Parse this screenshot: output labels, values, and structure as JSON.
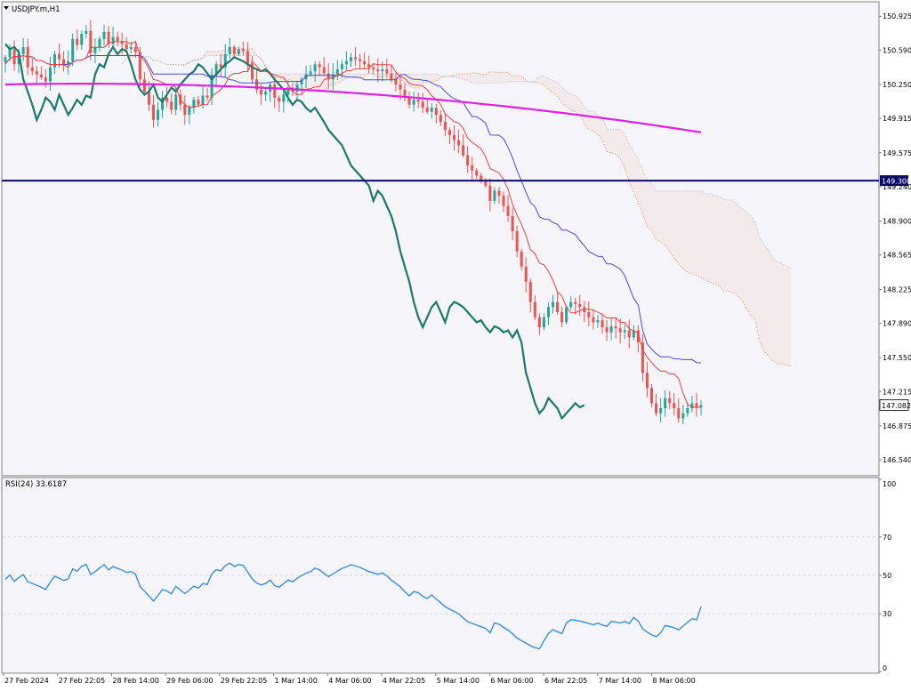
{
  "chart_data": {
    "type": "candlestick",
    "symbol_label": "USDJPY.m,H1",
    "colors": {
      "background": "#f4f4f9",
      "frame": "#7f7f7f",
      "bull": "#26a69a",
      "bear": "#ef5350",
      "tenkan": "#e8423f",
      "kijun": "#4a4ad6",
      "chikou": "#1b7a6b",
      "ma": "#e020e0",
      "level": "#0a0a6e",
      "cloud": "#f08a4a",
      "cloud_b": "#b0b0c8",
      "rsi": "#3b8fe0",
      "grid": "#d8d8e0",
      "price_box_bg": "#ffffff",
      "level_box_bg": "#0a0a6e"
    },
    "price_axis": {
      "ylim": [
        146.4,
        151.05
      ],
      "ticks": [
        "150.925",
        "150.590",
        "150.250",
        "149.915",
        "149.575",
        "149.240",
        "148.900",
        "148.565",
        "148.225",
        "147.890",
        "147.550",
        "147.215",
        "146.875",
        "146.540"
      ]
    },
    "time_axis": {
      "labels": [
        "27 Feb 2024",
        "27 Feb 22:05",
        "28 Feb 14:00",
        "29 Feb 06:00",
        "29 Feb 22:05",
        "1 Mar 14:00",
        "4 Mar 06:00",
        "4 Mar 22:05",
        "5 Mar 14:00",
        "6 Mar 06:00",
        "6 Mar 22:05",
        "7 Mar 14:00",
        "8 Mar 06:00"
      ]
    },
    "horizontal_level": {
      "value": 149.3,
      "label": "149.300"
    },
    "current_price": {
      "value": 147.082,
      "label": "147.082"
    },
    "candles": {
      "count": 156,
      "close": [
        150.52,
        150.6,
        150.45,
        150.55,
        150.62,
        150.42,
        150.38,
        150.35,
        150.32,
        150.28,
        150.42,
        150.55,
        150.5,
        150.45,
        150.48,
        150.7,
        150.64,
        150.75,
        150.78,
        150.56,
        150.62,
        150.7,
        150.77,
        150.65,
        150.72,
        150.68,
        150.65,
        150.6,
        150.62,
        150.57,
        150.3,
        150.18,
        150.05,
        149.9,
        150.0,
        150.12,
        150.08,
        150.0,
        150.15,
        150.05,
        149.95,
        150.02,
        150.1,
        150.05,
        150.14,
        150.12,
        150.35,
        150.45,
        150.42,
        150.55,
        150.62,
        150.55,
        150.6,
        150.58,
        150.45,
        150.3,
        150.2,
        150.15,
        150.18,
        150.25,
        150.12,
        150.08,
        150.15,
        150.22,
        150.18,
        150.25,
        150.3,
        150.35,
        150.38,
        150.45,
        150.42,
        150.36,
        150.3,
        150.35,
        150.4,
        150.45,
        150.48,
        150.52,
        150.5,
        150.48,
        150.45,
        150.42,
        150.4,
        150.38,
        150.4,
        150.36,
        150.3,
        150.25,
        150.2,
        150.12,
        150.05,
        150.1,
        150.08,
        150.02,
        149.98,
        150.02,
        149.95,
        149.88,
        149.8,
        149.75,
        149.7,
        149.65,
        149.55,
        149.45,
        149.4,
        149.35,
        149.3,
        149.25,
        149.1,
        149.2,
        149.15,
        149.05,
        148.95,
        148.8,
        148.6,
        148.45,
        148.3,
        148.1,
        147.95,
        147.85,
        147.95,
        148.05,
        148.1,
        148.0,
        147.9,
        148.05,
        148.1,
        148.08,
        148.05,
        148.0,
        147.95,
        147.9,
        147.92,
        147.85,
        147.8,
        147.86,
        147.84,
        147.8,
        147.82,
        147.75,
        147.82,
        147.7,
        147.4,
        147.25,
        147.1,
        147.0,
        147.05,
        147.15,
        147.1,
        147.05,
        146.95,
        147.0,
        147.05,
        147.1,
        147.06,
        147.08
      ]
    },
    "rsi": {
      "label": "RSI(24) 33.6187",
      "period": 24,
      "last": 33.6187,
      "ylim": [
        0,
        100
      ],
      "levels": [
        70,
        50,
        30
      ],
      "tick_labels": [
        "100",
        "70",
        "50",
        "30",
        "0"
      ]
    }
  }
}
